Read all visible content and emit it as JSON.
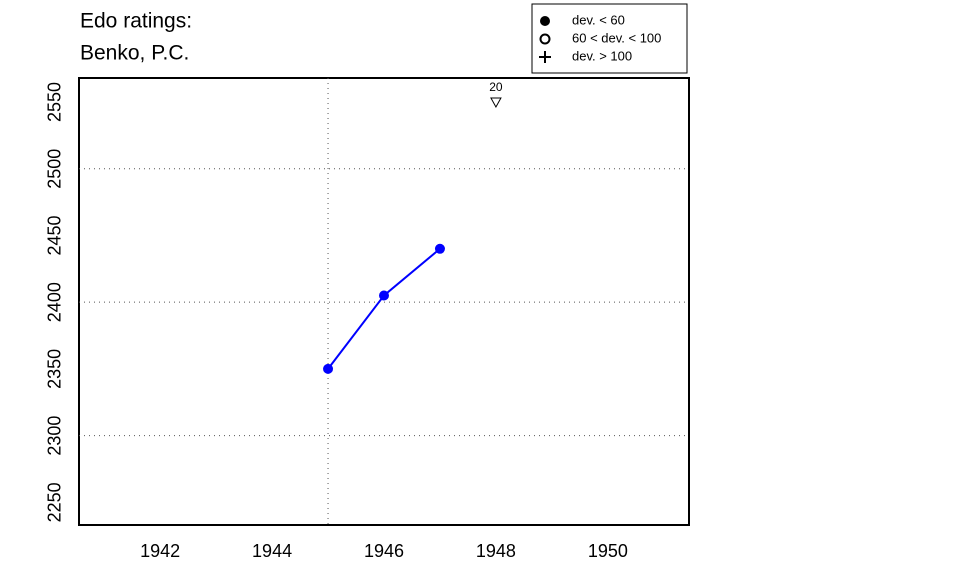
{
  "chart_data": {
    "type": "line",
    "title": [
      "Edo ratings:",
      "Benko, P.C."
    ],
    "x": [
      1945,
      1946,
      1947
    ],
    "series": [
      {
        "name": "dev. < 60",
        "color": "#0000ff",
        "values": [
          2350,
          2405,
          2440
        ]
      }
    ],
    "xlim": [
      1940.55,
      1951.45
    ],
    "xticks": [
      1942,
      1944,
      1946,
      1948,
      1950
    ],
    "ylim": [
      2233,
      2568
    ],
    "yticks": [
      2250,
      2300,
      2350,
      2400,
      2450,
      2500,
      2550
    ],
    "grid_x": [
      1945
    ],
    "grid_y": [
      2300,
      2400,
      2500
    ],
    "legend": {
      "position": "top-right",
      "entries": [
        {
          "label": "dev. < 60",
          "marker": "filled"
        },
        {
          "label": "60 < dev. < 100",
          "marker": "open"
        },
        {
          "label": "dev. > 100",
          "marker": "plus"
        }
      ]
    },
    "annotation": {
      "x": 1948,
      "y": 2550,
      "label": "20"
    }
  }
}
